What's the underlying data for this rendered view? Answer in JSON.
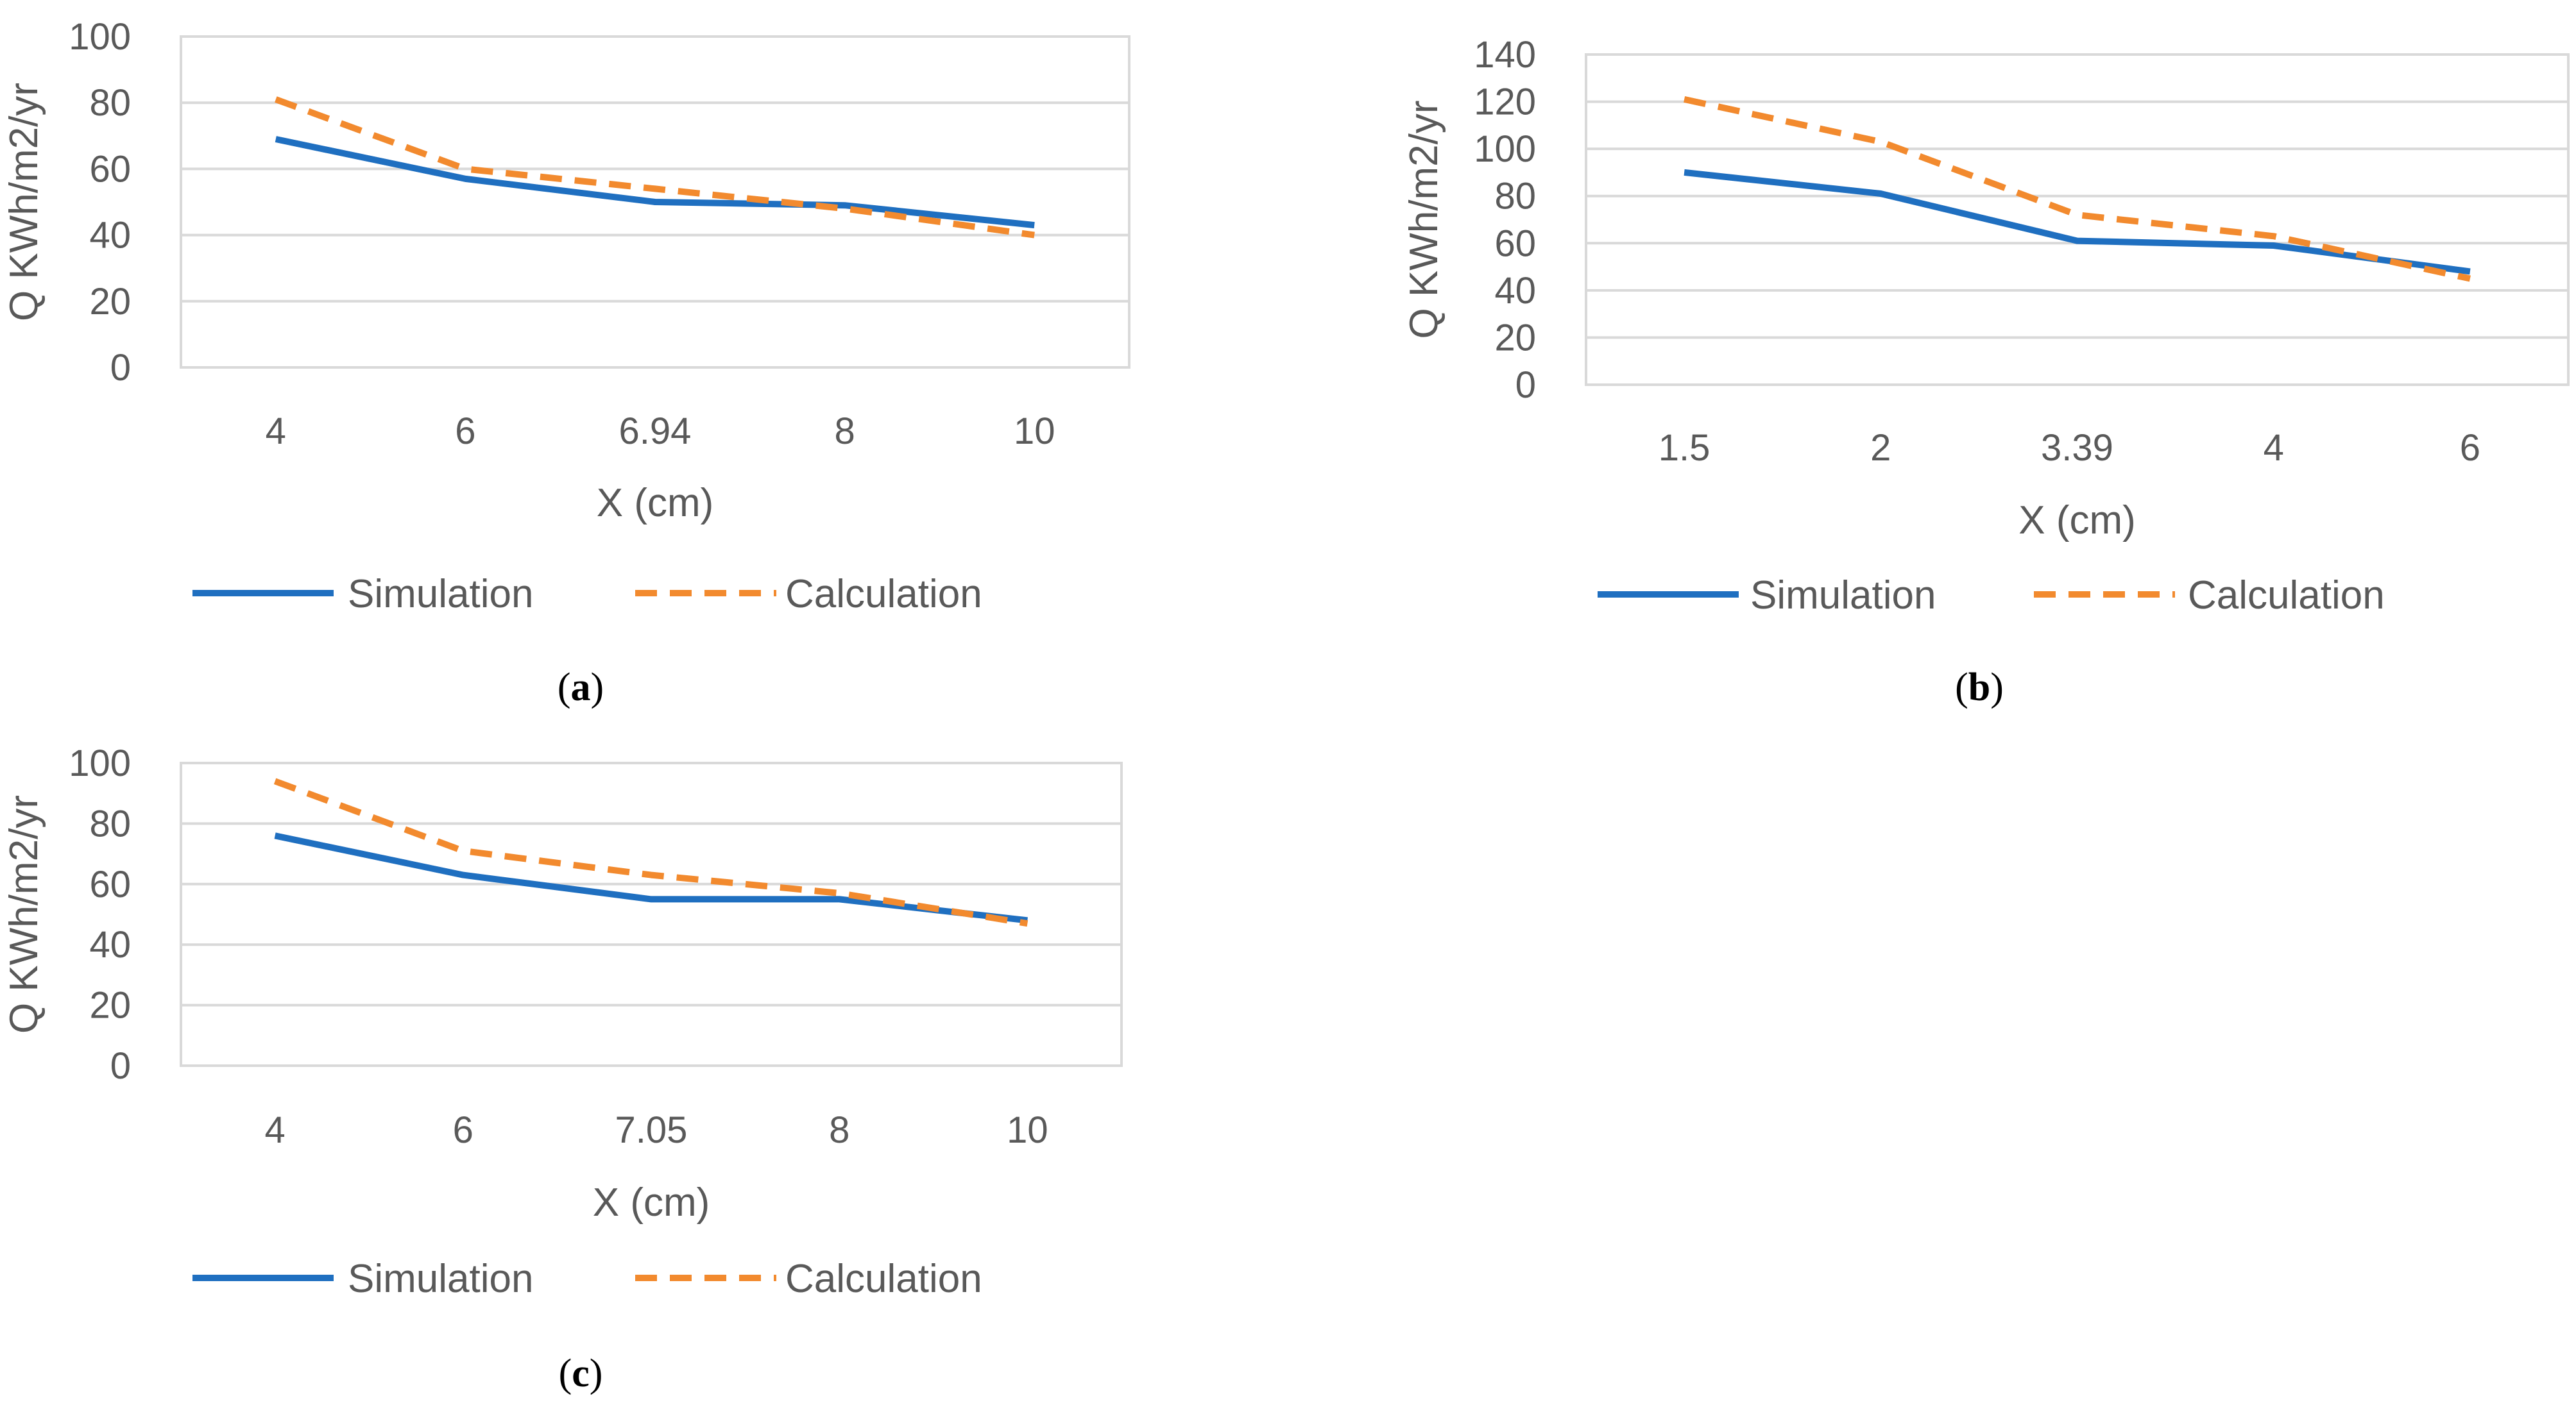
{
  "colors": {
    "simulation": "#1f6fc0",
    "calculation": "#f28a2e",
    "grid": "#d9d9d9",
    "text": "#595959"
  },
  "chart_data": [
    {
      "type": "line",
      "panel": "a",
      "caption_open": "(",
      "caption_letter": "a",
      "caption_close": ")",
      "categories": [
        "4",
        "6",
        "6.94",
        "8",
        "10"
      ],
      "series": [
        {
          "name": "Simulation",
          "values": [
            69,
            57,
            50,
            49,
            43
          ]
        },
        {
          "name": "Calculation",
          "values": [
            81,
            60,
            54,
            48,
            40
          ]
        }
      ],
      "xlabel": "X (cm)",
      "ylabel": "Q KWh/m2/yr",
      "ylim": [
        0,
        100
      ],
      "yticks": [
        0,
        20,
        40,
        60,
        80,
        100
      ],
      "grid": true,
      "legend": "bottom"
    },
    {
      "type": "line",
      "panel": "b",
      "caption_open": "(",
      "caption_letter": "b",
      "caption_close": ")",
      "categories": [
        "1.5",
        "2",
        "3.39",
        "4",
        "6"
      ],
      "series": [
        {
          "name": "Simulation",
          "values": [
            90,
            81,
            61,
            59,
            48
          ]
        },
        {
          "name": "Calculation",
          "values": [
            121,
            103,
            72,
            63,
            45
          ]
        }
      ],
      "xlabel": "X (cm)",
      "ylabel": "Q KWh/m2/yr",
      "ylim": [
        0,
        140
      ],
      "yticks": [
        0,
        20,
        40,
        60,
        80,
        100,
        120,
        140
      ],
      "grid": true,
      "legend": "bottom"
    },
    {
      "type": "line",
      "panel": "c",
      "caption_open": "(",
      "caption_letter": "c",
      "caption_close": ")",
      "categories": [
        "4",
        "6",
        "7.05",
        "8",
        "10"
      ],
      "series": [
        {
          "name": "Simulation",
          "values": [
            76,
            63,
            55,
            55,
            48
          ]
        },
        {
          "name": "Calculation",
          "values": [
            94,
            71,
            63,
            57,
            47
          ]
        }
      ],
      "xlabel": "X (cm)",
      "ylabel": "Q KWh/m2/yr",
      "ylim": [
        0,
        100
      ],
      "yticks": [
        0,
        20,
        40,
        60,
        80,
        100
      ],
      "grid": true,
      "legend": "bottom"
    }
  ]
}
